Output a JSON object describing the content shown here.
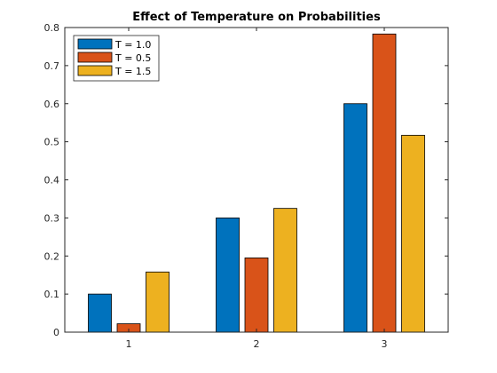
{
  "chart_data": {
    "type": "bar",
    "title": "Effect of Temperature on Probabilities",
    "xlabel": "",
    "ylabel": "",
    "categories": [
      "1",
      "2",
      "3"
    ],
    "series": [
      {
        "name": "T = 1.0",
        "color": "#0072BD",
        "values": [
          0.1,
          0.3,
          0.6
        ]
      },
      {
        "name": "T = 0.5",
        "color": "#D95319",
        "values": [
          0.022,
          0.195,
          0.783
        ]
      },
      {
        "name": "T = 1.5",
        "color": "#EDB120",
        "values": [
          0.158,
          0.325,
          0.517
        ]
      }
    ],
    "ylim": [
      0,
      0.8
    ],
    "yticks": [
      "0",
      "0.1",
      "0.2",
      "0.3",
      "0.4",
      "0.5",
      "0.6",
      "0.7",
      "0.8"
    ],
    "legend_position": "top-left",
    "grid": false
  }
}
